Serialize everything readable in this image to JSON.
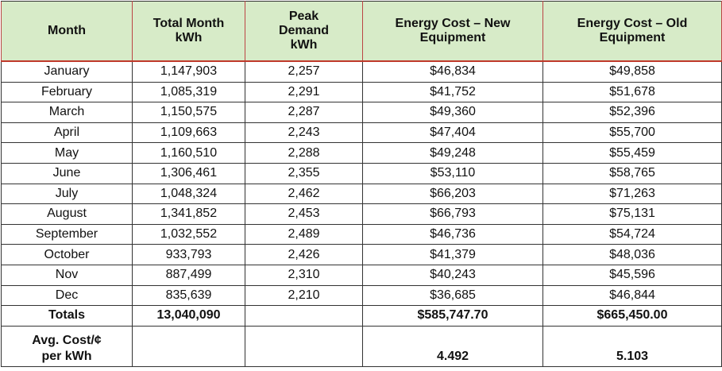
{
  "table": {
    "header": [
      [
        "Month"
      ],
      [
        "Total Month",
        "kWh"
      ],
      [
        "Peak",
        "Demand",
        "kWh"
      ],
      [
        "Energy Cost – New",
        "Equipment"
      ],
      [
        "Energy Cost – Old",
        "Equipment"
      ]
    ],
    "rows": [
      [
        "January",
        "1,147,903",
        "2,257",
        "$46,834",
        "$49,858"
      ],
      [
        "February",
        "1,085,319",
        "2,291",
        "$41,752",
        "$51,678"
      ],
      [
        "March",
        "1,150,575",
        "2,287",
        "$49,360",
        "$52,396"
      ],
      [
        "April",
        "1,109,663",
        "2,243",
        "$47,404",
        "$55,700"
      ],
      [
        "May",
        "1,160,510",
        "2,288",
        "$49,248",
        "$55,459"
      ],
      [
        "June",
        "1,306,461",
        "2,355",
        "$53,110",
        "$58,765"
      ],
      [
        "July",
        "1,048,324",
        "2,462",
        "$66,203",
        "$71,263"
      ],
      [
        "August",
        "1,341,852",
        "2,453",
        "$66,793",
        "$75,131"
      ],
      [
        "September",
        "1,032,552",
        "2,489",
        "$46,736",
        "$54,724"
      ],
      [
        "October",
        "933,793",
        "2,426",
        "$41,379",
        "$48,036"
      ],
      [
        "Nov",
        "887,499",
        "2,310",
        "$40,243",
        "$45,596"
      ],
      [
        "Dec",
        "835,639",
        "2,210",
        "$36,685",
        "$46,844"
      ],
      [
        "Totals",
        "13,040,090",
        null,
        "$585,747.70",
        "$665,450.00"
      ],
      [
        [
          "Avg. Cost/¢",
          "per kWh"
        ],
        null,
        null,
        "4.492",
        "5.103"
      ]
    ]
  }
}
